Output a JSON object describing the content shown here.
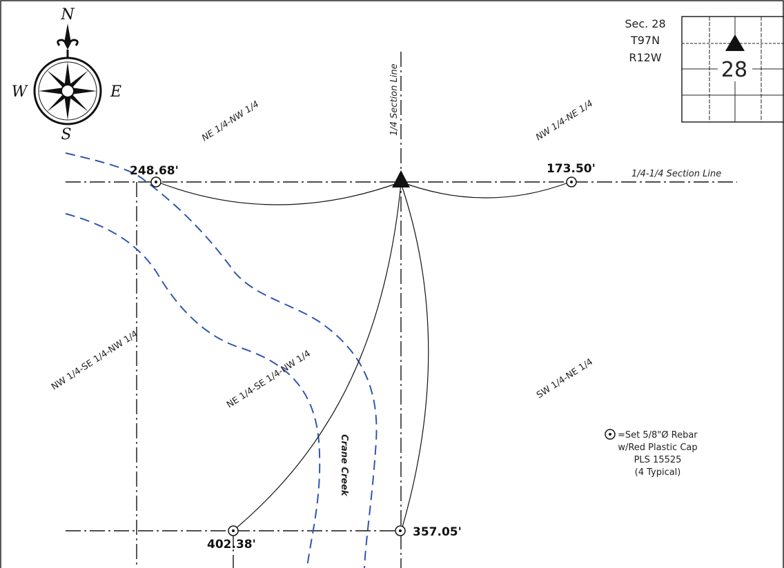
{
  "compass": {
    "north": "N",
    "west": "W",
    "east": "E",
    "south": "S"
  },
  "section_info": {
    "section": "Sec. 28",
    "township": "T97N",
    "range": "R12W",
    "inset_number": "28"
  },
  "labels": {
    "ne_nw": "NE 1/4-NW 1/4",
    "nw_ne": "NW 1/4-NE 1/4",
    "quarter_line": "1/4 Section Line",
    "quarter_quarter_line": "1/4-1/4 Section Line",
    "nw_se_nw": "NW 1/4-SE 1/4-NW 1/4",
    "ne_se_nw": "NE 1/4-SE 1/4-NW 1/4",
    "sw_ne": "SW 1/4-NE 1/4",
    "creek": "Crane Creek"
  },
  "distances": {
    "top_left": "248.68'",
    "top_right": "173.50'",
    "bottom_left": "402.38'",
    "bottom_right": "357.05'"
  },
  "legend": {
    "line1": "=Set 5/8\"Ø Rebar",
    "line2": "w/Red Plastic Cap",
    "line3": "PLS 15525",
    "line4": "(4 Typical)"
  }
}
